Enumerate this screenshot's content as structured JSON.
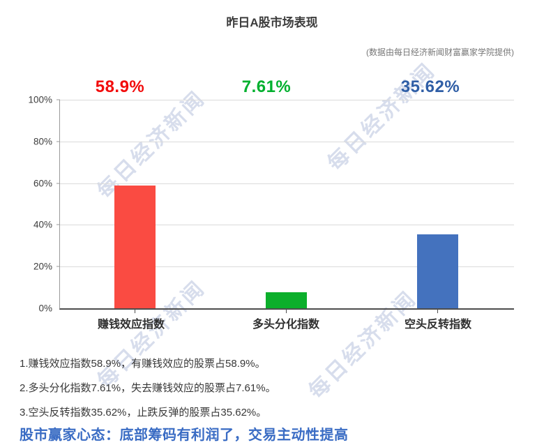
{
  "title": "昨日A股市场表现",
  "subtitle": "(数据由每日经济新闻财富赢家学院提供)",
  "watermark": {
    "text": "每日经济新闻"
  },
  "chart_data": {
    "type": "bar",
    "categories": [
      "赚钱效应指数",
      "多头分化指数",
      "空头反转指数"
    ],
    "values": [
      58.9,
      7.61,
      35.62
    ],
    "value_labels": [
      "58.9%",
      "7.61%",
      "35.62%"
    ],
    "bar_colors": [
      "#fa4b42",
      "#0caf2b",
      "#4472be"
    ],
    "label_colors": [
      "#f20c0c",
      "#00b02e",
      "#2f5ea6"
    ],
    "title": "昨日A股市场表现",
    "xlabel": "",
    "ylabel": "",
    "ylim": [
      0,
      100
    ],
    "yticks": [
      "100%",
      "80%",
      "60%",
      "40%",
      "20%",
      "0%"
    ],
    "grid": true,
    "legend": false
  },
  "notes": [
    "1.赚钱效应指数58.9%，有赚钱效应的股票占58.9%。",
    "2.多头分化指数7.61%，失去赚钱效应的股票占7.61%。",
    "3.空头反转指数35.62%，止跌反弹的股票占35.62%。"
  ],
  "headline": "股市赢家心态：底部筹码有利润了，交易主动性提高"
}
